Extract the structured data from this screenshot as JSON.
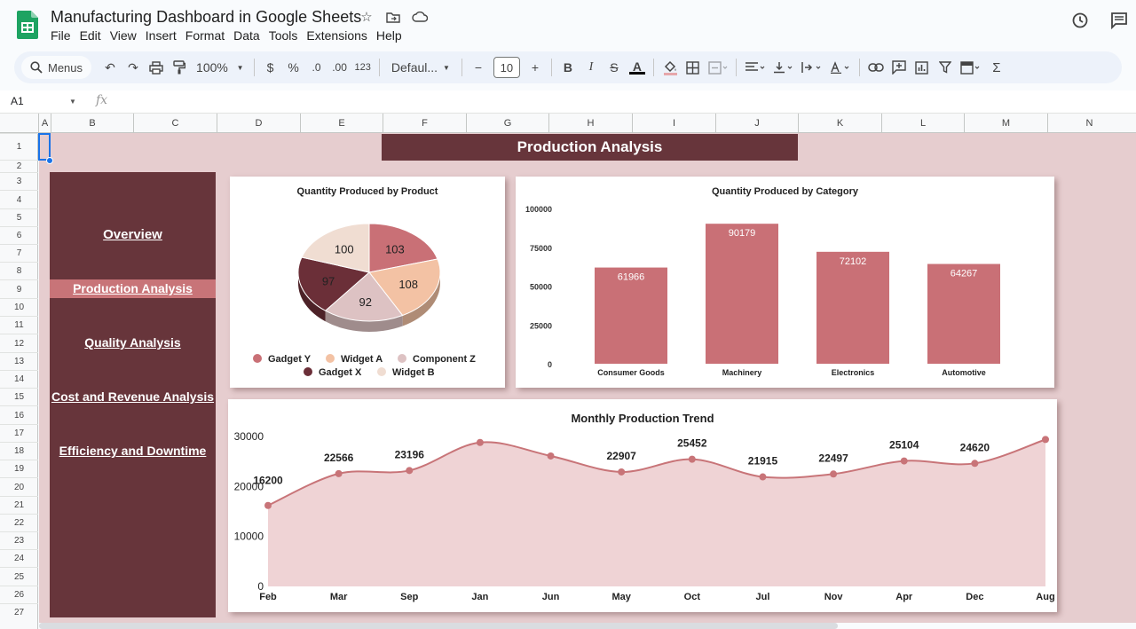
{
  "doc": {
    "title": "Manufacturing Dashboard in Google Sheets"
  },
  "menu": [
    "File",
    "Edit",
    "View",
    "Insert",
    "Format",
    "Data",
    "Tools",
    "Extensions",
    "Help"
  ],
  "toolbar": {
    "search_label": "Menus",
    "zoom": "100%",
    "currency": "$",
    "percent": "%",
    "dec_decrease": ".0",
    "dec_increase": ".00",
    "format_123": "123",
    "font": "Defaul...",
    "font_size": "10",
    "bold": "B",
    "italic": "I",
    "strike": "S",
    "text_color": "A"
  },
  "formula": {
    "name_box": "A1",
    "fx": "fx"
  },
  "columns": [
    "A",
    "B",
    "C",
    "D",
    "E",
    "F",
    "G",
    "H",
    "I",
    "J",
    "K",
    "L",
    "M",
    "N"
  ],
  "rows": [
    "1",
    "2",
    "3",
    "4",
    "5",
    "6",
    "7",
    "8",
    "9",
    "10",
    "11",
    "12",
    "13",
    "14",
    "15",
    "16",
    "17",
    "18",
    "19",
    "20",
    "21",
    "22",
    "23",
    "24",
    "25",
    "26",
    "27"
  ],
  "dashboard": {
    "banner": "Production Analysis",
    "nav": [
      {
        "label": "Overview",
        "active": false
      },
      {
        "label": "Production Analysis",
        "active": true
      },
      {
        "label": "Quality Analysis",
        "active": false
      },
      {
        "label": "Cost and Revenue Analysis",
        "active": false
      },
      {
        "label": "Efficiency and Downtime",
        "active": false
      }
    ]
  },
  "colors": {
    "dark": "#67353b",
    "accent": "#c87478",
    "bar": "#c97076",
    "area_fill": "#efd3d5",
    "line": "#c87478",
    "sheet_bg": "#e6cdcf"
  },
  "chart_data": [
    {
      "type": "pie",
      "title": "Quantity Produced by Product",
      "labels": [
        "Gadget Y",
        "Widget A",
        "Component Z",
        "Gadget X",
        "Widget B"
      ],
      "values": [
        103,
        108,
        92,
        97,
        100
      ],
      "colors": [
        "#c97076",
        "#f3c2a4",
        "#ddc2c3",
        "#6b2f38",
        "#f0ddd2"
      ],
      "legend": "bottom"
    },
    {
      "type": "bar",
      "title": "Quantity Produced by Category",
      "categories": [
        "Consumer Goods",
        "Machinery",
        "Electronics",
        "Automotive"
      ],
      "values": [
        61966,
        90179,
        72102,
        64267
      ],
      "ylim": [
        0,
        100000
      ],
      "yticks": [
        "100000",
        "75000",
        "50000",
        "25000",
        "0"
      ],
      "grid": false
    },
    {
      "type": "area",
      "title": "Monthly Production Trend",
      "categories": [
        "Feb",
        "Mar",
        "Sep",
        "Jan",
        "Jun",
        "May",
        "Oct",
        "Jul",
        "Nov",
        "Apr",
        "Dec",
        "Aug"
      ],
      "values": [
        16200,
        22566,
        23196,
        28800,
        26100,
        22907,
        25452,
        21915,
        22497,
        25104,
        24620,
        29400
      ],
      "labels": [
        "16200",
        "22566",
        "23196",
        "",
        "",
        "22907",
        "25452",
        "21915",
        "22497",
        "25104",
        "24620",
        ""
      ],
      "ylim": [
        0,
        30000
      ],
      "yticks": [
        "30000",
        "20000",
        "10000",
        "0"
      ],
      "grid": false
    }
  ]
}
